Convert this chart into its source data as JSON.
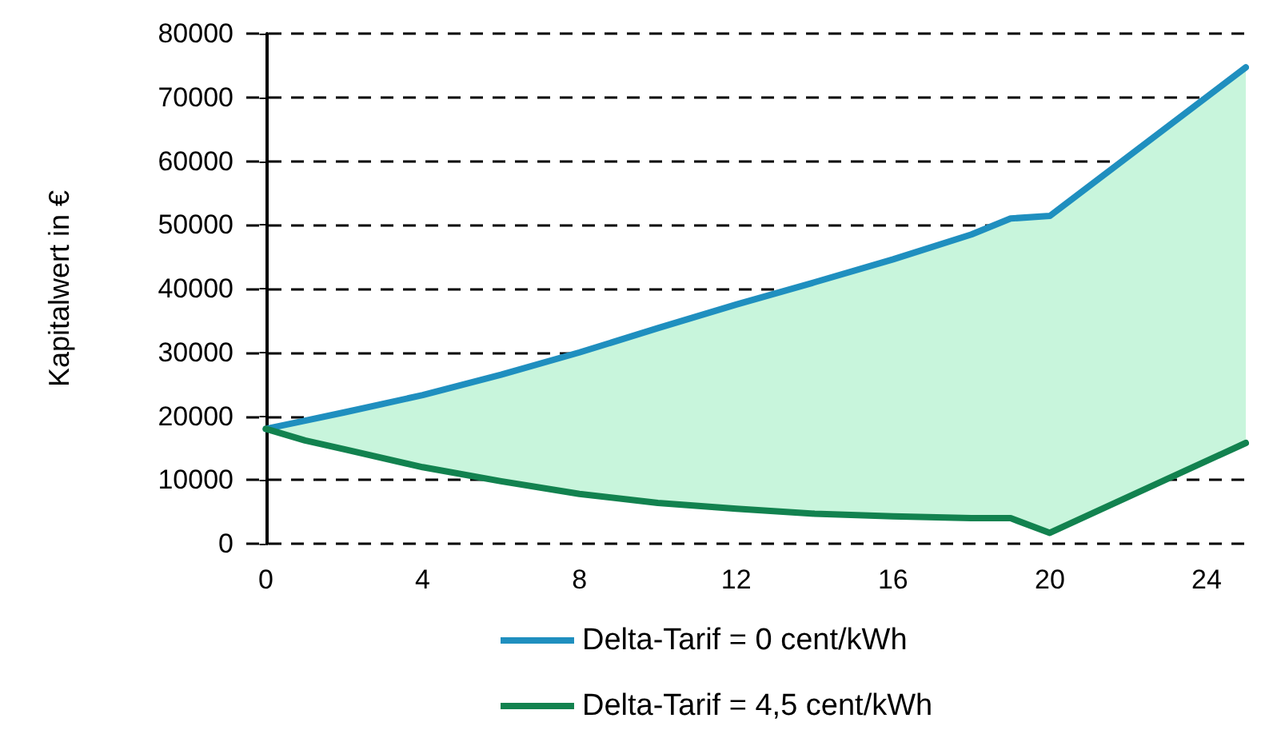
{
  "chart_data": {
    "type": "line",
    "ylabel": "Kapitalwert in €",
    "x": [
      0,
      1,
      2,
      4,
      6,
      8,
      10,
      12,
      14,
      16,
      18,
      19,
      20,
      25
    ],
    "series": [
      {
        "name": "Delta-Tarif = 0 cent/kWh",
        "color": "#1f8fbf",
        "values": [
          18000,
          19300,
          20600,
          23300,
          26500,
          30000,
          33800,
          37500,
          41000,
          44600,
          48500,
          51000,
          51400,
          74700
        ],
        "lower": [
          18000,
          16200,
          14800,
          12000,
          9800,
          7800,
          6400,
          5500,
          4700,
          4300,
          4000,
          4000,
          1700,
          15800
        ],
        "upper": [
          18000,
          19300,
          20600,
          23300,
          26500,
          30000,
          33800,
          37500,
          41000,
          44600,
          48500,
          51000,
          51400,
          74700
        ]
      },
      {
        "name": "Delta-Tarif = 4,5 cent/kWh",
        "color": "#12824f",
        "values": [
          18000,
          16200,
          14800,
          12000,
          9800,
          7800,
          6400,
          5500,
          4700,
          4300,
          4000,
          4000,
          1700,
          15800
        ]
      }
    ],
    "xlim": [
      -0.5,
      25
    ],
    "xticks": [
      0,
      4,
      8,
      12,
      16,
      20,
      24
    ],
    "ylim": [
      0,
      80000
    ],
    "yticks": [
      0,
      10000,
      20000,
      30000,
      40000,
      50000,
      60000,
      70000,
      80000
    ],
    "grid": "y",
    "legend": "bottom",
    "marker": "none",
    "line_style": "solid"
  }
}
